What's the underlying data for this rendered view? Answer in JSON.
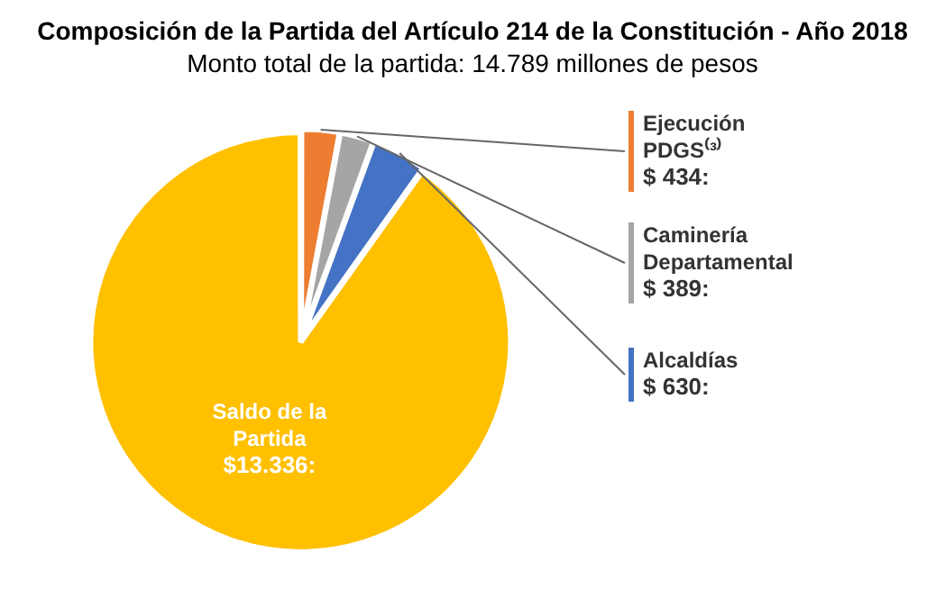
{
  "chart_data": {
    "type": "pie",
    "title": "Composición de la Partida del Artículo 214 de la Constitución - Año 2018",
    "subtitle": "Monto total de la partida: 14.789 millones de pesos",
    "categories": [
      "Ejecución PDGS⁽³⁾",
      "Caminería Departamental",
      "Alcaldías",
      "Saldo de la Partida"
    ],
    "values": [
      434,
      389,
      630,
      13336
    ],
    "value_labels": [
      "$ 434:",
      "$ 389:",
      "$ 630:",
      "$13.336:"
    ],
    "colors": [
      "#ed7d31",
      "#a5a5a5",
      "#4472c4",
      "#ffc000"
    ]
  }
}
